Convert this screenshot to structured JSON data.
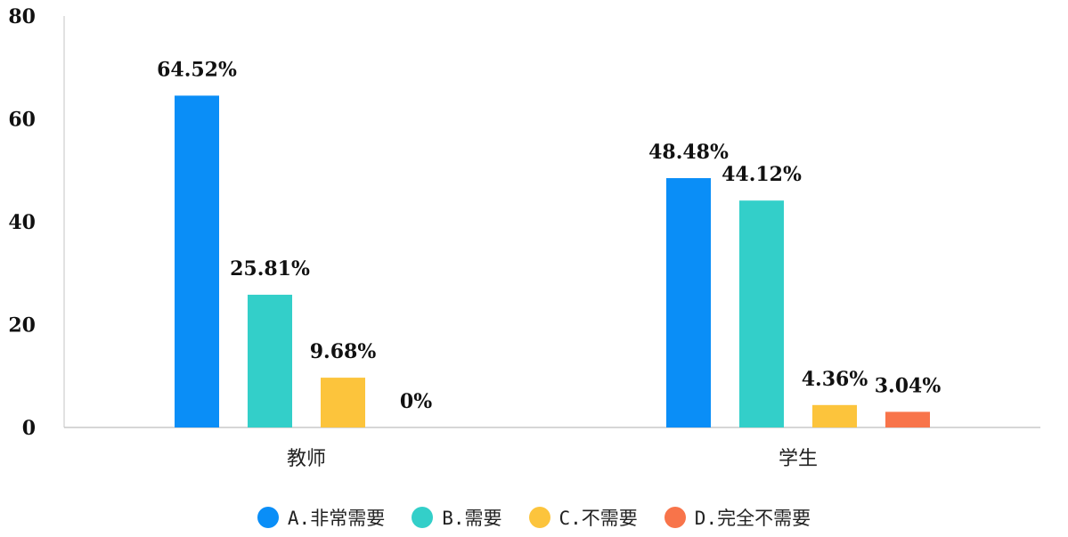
{
  "chart_data": {
    "type": "bar",
    "categories": [
      "教师",
      "学生"
    ],
    "series": [
      {
        "name": "A.非常需要",
        "color": "#0a8ef7",
        "values": [
          64.52,
          48.48
        ],
        "labels": [
          "64.52%",
          "48.48%"
        ]
      },
      {
        "name": "B.需要",
        "color": "#33cfc9",
        "values": [
          25.81,
          44.12
        ],
        "labels": [
          "25.81%",
          "44.12%"
        ]
      },
      {
        "name": "C.不需要",
        "color": "#fcc43c",
        "values": [
          9.68,
          4.36
        ],
        "labels": [
          "9.68%",
          "4.36%"
        ]
      },
      {
        "name": "D.完全不需要",
        "color": "#f8744a",
        "values": [
          0,
          3.04
        ],
        "labels": [
          "0%",
          "3.04%"
        ]
      }
    ],
    "yticks": [
      "0",
      "20",
      "40",
      "60",
      "80"
    ],
    "ylim": [
      0,
      80
    ],
    "grid": false,
    "legend_position": "bottom"
  }
}
